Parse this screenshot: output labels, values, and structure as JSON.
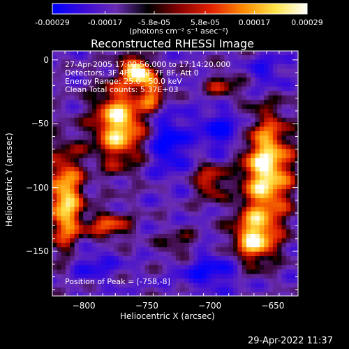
{
  "colorbar": {
    "ticks": [
      "-0.00029",
      "-0.00017",
      "-5.8e-05",
      "5.8e-05",
      "0.00017",
      "0.00029"
    ],
    "values": [
      -0.00029,
      -0.00017,
      -5.8e-05,
      5.8e-05,
      0.00017,
      0.00029
    ],
    "range": [
      -0.00029,
      0.00029
    ],
    "units_label": "(photons cm⁻² s⁻¹ asec⁻²)",
    "colors": [
      "#0000ff",
      "#3c0bd8",
      "#6a2cb4",
      "#000000",
      "#8a0000",
      "#e32200",
      "#ff8a00",
      "#ffe34a",
      "#ffffff"
    ]
  },
  "chart_data": {
    "type": "heatmap",
    "title": "Reconstructed RHESSI Image",
    "xlabel": "Heliocentric X (arcsec)",
    "ylabel": "Heliocentric Y (arcsec)",
    "xlim": [
      -825,
      -630
    ],
    "ylim": [
      -185,
      7
    ],
    "xticks": [
      -800,
      -750,
      -700,
      -650
    ],
    "yticks": [
      0,
      -50,
      -100,
      -150
    ],
    "xtick_labels": [
      "−800",
      "−750",
      "−700",
      "−650"
    ],
    "ytick_labels": [
      "0",
      "−50",
      "−100",
      "−150"
    ],
    "annotations": [
      "27-Apr-2005 17:09:56.000 to 17:14:20.000",
      "Detectors: 3F 4F 5F 6F 7F 8F, Att 0",
      "Energy Range: 25.0 - 50.0 keV",
      "Clean    Total counts: 5.37E+03"
    ],
    "peak_label": "Position of Peak = [-758,-8]",
    "peak": [
      -758,
      -8
    ],
    "bright_sources": [
      {
        "x": -815,
        "y": -110,
        "intensity": 0.8,
        "sx": 10,
        "sy": 28
      },
      {
        "x": -772,
        "y": -50,
        "intensity": 0.85,
        "sx": 14,
        "sy": 22
      },
      {
        "x": -758,
        "y": -8,
        "intensity": 1.0,
        "sx": 7,
        "sy": 7
      },
      {
        "x": -745,
        "y": -25,
        "intensity": 0.55,
        "sx": 7,
        "sy": 10
      },
      {
        "x": -780,
        "y": -130,
        "intensity": 0.5,
        "sx": 12,
        "sy": 8
      },
      {
        "x": -655,
        "y": -85,
        "intensity": 0.9,
        "sx": 14,
        "sy": 30
      },
      {
        "x": -665,
        "y": -140,
        "intensity": 0.75,
        "sx": 12,
        "sy": 14
      },
      {
        "x": -700,
        "y": -95,
        "intensity": 0.5,
        "sx": 8,
        "sy": 10
      },
      {
        "x": -690,
        "y": -20,
        "intensity": 0.35,
        "sx": 10,
        "sy": 8
      },
      {
        "x": -725,
        "y": -145,
        "intensity": 0.3,
        "sx": 10,
        "sy": 8
      }
    ],
    "dark_regions": [
      {
        "x": -733,
        "y": -65,
        "depth": 0.7,
        "sx": 10,
        "sy": 16
      },
      {
        "x": -690,
        "y": -55,
        "depth": 0.6,
        "sx": 14,
        "sy": 12
      },
      {
        "x": -700,
        "y": -165,
        "depth": 0.55,
        "sx": 16,
        "sy": 10
      },
      {
        "x": -795,
        "y": -160,
        "depth": 0.4,
        "sx": 14,
        "sy": 10
      },
      {
        "x": -655,
        "y": -10,
        "depth": 0.45,
        "sx": 10,
        "sy": 10
      }
    ]
  },
  "timestamp": "29-Apr-2022 11:37"
}
